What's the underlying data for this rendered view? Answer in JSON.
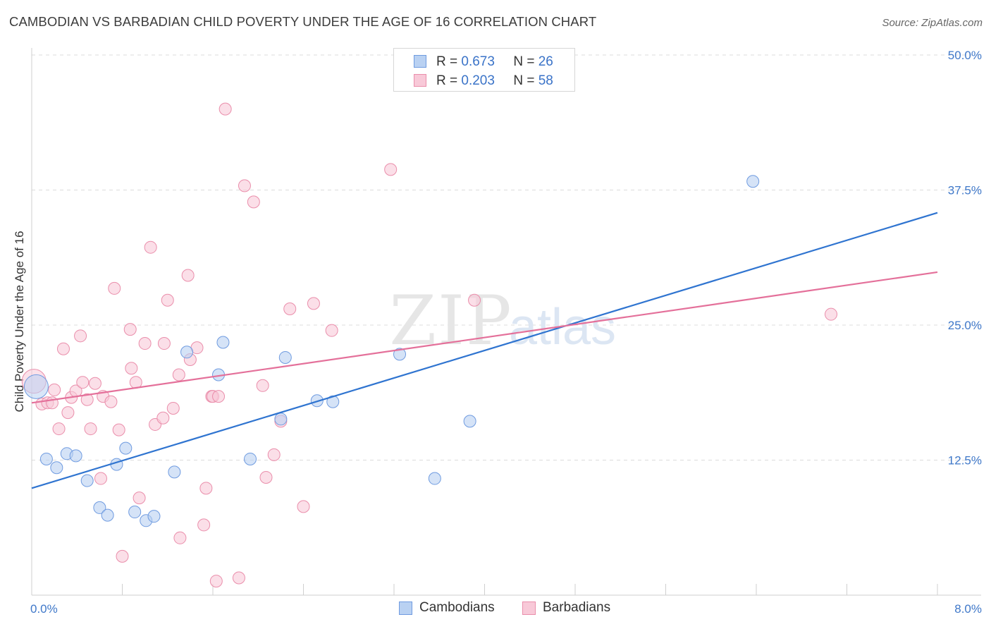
{
  "title": "CAMBODIAN VS BARBADIAN CHILD POVERTY UNDER THE AGE OF 16 CORRELATION CHART",
  "source": "Source: ZipAtlas.com",
  "watermark": {
    "main": "ZIP",
    "sub": "atlas"
  },
  "legend": {
    "rows": [
      {
        "r_label": "R =",
        "r_value": "0.673",
        "n_label": "N =",
        "n_value": "26"
      },
      {
        "r_label": "R =",
        "r_value": "0.203",
        "n_label": "N =",
        "n_value": "58"
      }
    ]
  },
  "bottom_legend": {
    "cambodians": "Cambodians",
    "barbadians": "Barbadians"
  },
  "colors": {
    "blue_fill": "#b9d1f2",
    "blue_stroke": "#6f9be0",
    "blue_line": "#2f74d0",
    "pink_fill": "#f8c9d8",
    "pink_stroke": "#ea8eab",
    "pink_line": "#e4709a",
    "tick_text": "#3f78c9",
    "grid": "#dcdcdc"
  },
  "chart_data": {
    "type": "scatter",
    "title": "CAMBODIAN VS BARBADIAN CHILD POVERTY UNDER THE AGE OF 16 CORRELATION CHART",
    "xlabel": "",
    "ylabel": "Child Poverty Under the Age of 16",
    "xlim": [
      0,
      8
    ],
    "ylim": [
      0,
      50
    ],
    "x_tick_labels": [
      "0.0%",
      "8.0%"
    ],
    "y_ticks": [
      12.5,
      25.0,
      37.5,
      50.0
    ],
    "y_tick_labels": [
      "12.5%",
      "25.0%",
      "37.5%",
      "50.0%"
    ],
    "grid": true,
    "legend_position": "top-center",
    "series": [
      {
        "name": "Cambodians",
        "color": "#6f9be0",
        "points": [
          [
            0.04,
            19.3
          ],
          [
            0.13,
            12.6
          ],
          [
            0.22,
            11.8
          ],
          [
            0.31,
            13.1
          ],
          [
            0.39,
            12.9
          ],
          [
            0.49,
            10.6
          ],
          [
            0.6,
            8.1
          ],
          [
            0.67,
            7.4
          ],
          [
            0.75,
            12.1
          ],
          [
            0.83,
            13.6
          ],
          [
            0.91,
            7.7
          ],
          [
            1.01,
            6.9
          ],
          [
            1.08,
            7.3
          ],
          [
            1.26,
            11.4
          ],
          [
            1.37,
            22.5
          ],
          [
            1.65,
            20.4
          ],
          [
            1.69,
            23.4
          ],
          [
            1.93,
            12.6
          ],
          [
            2.2,
            16.3
          ],
          [
            2.24,
            22.0
          ],
          [
            2.52,
            18.0
          ],
          [
            2.66,
            17.9
          ],
          [
            3.25,
            22.3
          ],
          [
            3.56,
            10.8
          ],
          [
            3.87,
            16.1
          ],
          [
            6.37,
            38.3
          ]
        ],
        "trend": {
          "x": [
            0,
            8
          ],
          "y": [
            9.9,
            35.4
          ]
        }
      },
      {
        "name": "Barbadians",
        "color": "#ea8eab",
        "points": [
          [
            0.02,
            19.8
          ],
          [
            0.09,
            17.7
          ],
          [
            0.14,
            17.8
          ],
          [
            0.18,
            17.8
          ],
          [
            0.2,
            19.0
          ],
          [
            0.24,
            15.4
          ],
          [
            0.28,
            22.8
          ],
          [
            0.32,
            16.9
          ],
          [
            0.35,
            18.3
          ],
          [
            0.39,
            18.9
          ],
          [
            0.43,
            24.0
          ],
          [
            0.45,
            19.7
          ],
          [
            0.49,
            18.1
          ],
          [
            0.52,
            15.4
          ],
          [
            0.56,
            19.6
          ],
          [
            0.61,
            10.8
          ],
          [
            0.63,
            18.4
          ],
          [
            0.7,
            17.9
          ],
          [
            0.73,
            28.4
          ],
          [
            0.77,
            15.3
          ],
          [
            0.8,
            3.6
          ],
          [
            0.87,
            24.6
          ],
          [
            0.88,
            21.0
          ],
          [
            0.92,
            19.7
          ],
          [
            0.95,
            9.0
          ],
          [
            1.0,
            23.3
          ],
          [
            1.05,
            32.2
          ],
          [
            1.09,
            15.8
          ],
          [
            1.16,
            16.4
          ],
          [
            1.17,
            23.3
          ],
          [
            1.2,
            27.3
          ],
          [
            1.25,
            17.3
          ],
          [
            1.3,
            20.4
          ],
          [
            1.31,
            5.3
          ],
          [
            1.38,
            29.6
          ],
          [
            1.4,
            21.8
          ],
          [
            1.46,
            22.9
          ],
          [
            1.52,
            6.5
          ],
          [
            1.54,
            9.9
          ],
          [
            1.59,
            18.4
          ],
          [
            1.6,
            18.4
          ],
          [
            1.63,
            1.3
          ],
          [
            1.65,
            18.4
          ],
          [
            1.71,
            45.0
          ],
          [
            1.83,
            1.6
          ],
          [
            1.88,
            37.9
          ],
          [
            1.96,
            36.4
          ],
          [
            2.04,
            19.4
          ],
          [
            2.07,
            10.9
          ],
          [
            2.14,
            13.0
          ],
          [
            2.2,
            16.1
          ],
          [
            2.28,
            26.5
          ],
          [
            2.4,
            8.2
          ],
          [
            2.49,
            27.0
          ],
          [
            2.65,
            24.5
          ],
          [
            3.17,
            39.4
          ],
          [
            3.91,
            27.3
          ],
          [
            7.06,
            26.0
          ]
        ],
        "trend": {
          "x": [
            0,
            8
          ],
          "y": [
            17.8,
            29.9
          ]
        }
      }
    ]
  }
}
